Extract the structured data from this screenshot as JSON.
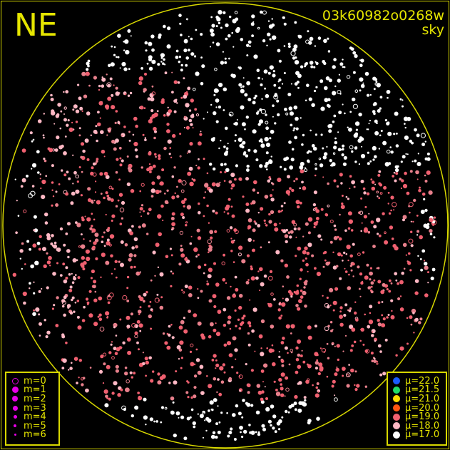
{
  "header": {
    "direction_label": "NE",
    "field_id": "03k60982o0268w",
    "field_type": "sky"
  },
  "colors": {
    "frame": "#d8d800",
    "text": "#e6e600",
    "magnitude_symbol": "#e600e6"
  },
  "magnitude_legend": [
    {
      "label": "m=0",
      "size": 9,
      "hollow": true
    },
    {
      "label": "m=1",
      "size": 9
    },
    {
      "label": "m=2",
      "size": 8
    },
    {
      "label": "m=3",
      "size": 7
    },
    {
      "label": "m=4",
      "size": 5
    },
    {
      "label": "m=5",
      "size": 4
    },
    {
      "label": "m=6",
      "size": 3
    }
  ],
  "surface_brightness_legend": [
    {
      "label": "μ=22.0",
      "color": "#1a5cff"
    },
    {
      "label": "μ=21.5",
      "color": "#22dd66"
    },
    {
      "label": "μ=21.0",
      "color": "#ffdd00"
    },
    {
      "label": "μ=20.0",
      "color": "#ff5511"
    },
    {
      "label": "μ=19.0",
      "color": "#f06070"
    },
    {
      "label": "μ=18.0",
      "color": "#ffb8c4"
    },
    {
      "label": "μ=17.0",
      "color": "#ffffff"
    }
  ]
}
